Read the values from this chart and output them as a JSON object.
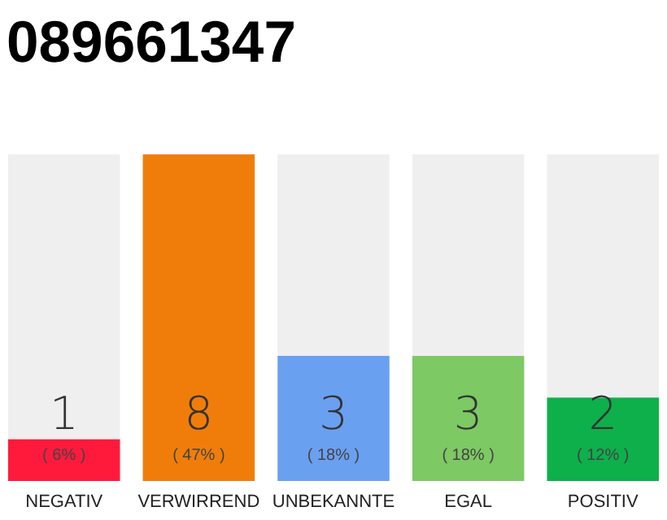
{
  "chart_data": {
    "type": "bar",
    "title": "089661347",
    "categories": [
      "NEGATIV",
      "VERWIRREND",
      "UNBEKANNTE",
      "EGAL",
      "POSITIV"
    ],
    "values": [
      6,
      47,
      18,
      18,
      12
    ],
    "colors": [
      "#ff1a3c",
      "#f07d0a",
      "#6aa0f0",
      "#7dc963",
      "#0db04a"
    ],
    "value_labels": [
      "( 6% )",
      "( 47% )",
      "( 18% )",
      "( 18% )",
      "( 12% )"
    ],
    "annotations": [
      "1",
      "8",
      "3",
      "3",
      "2"
    ],
    "tick_labels": "x"
  }
}
